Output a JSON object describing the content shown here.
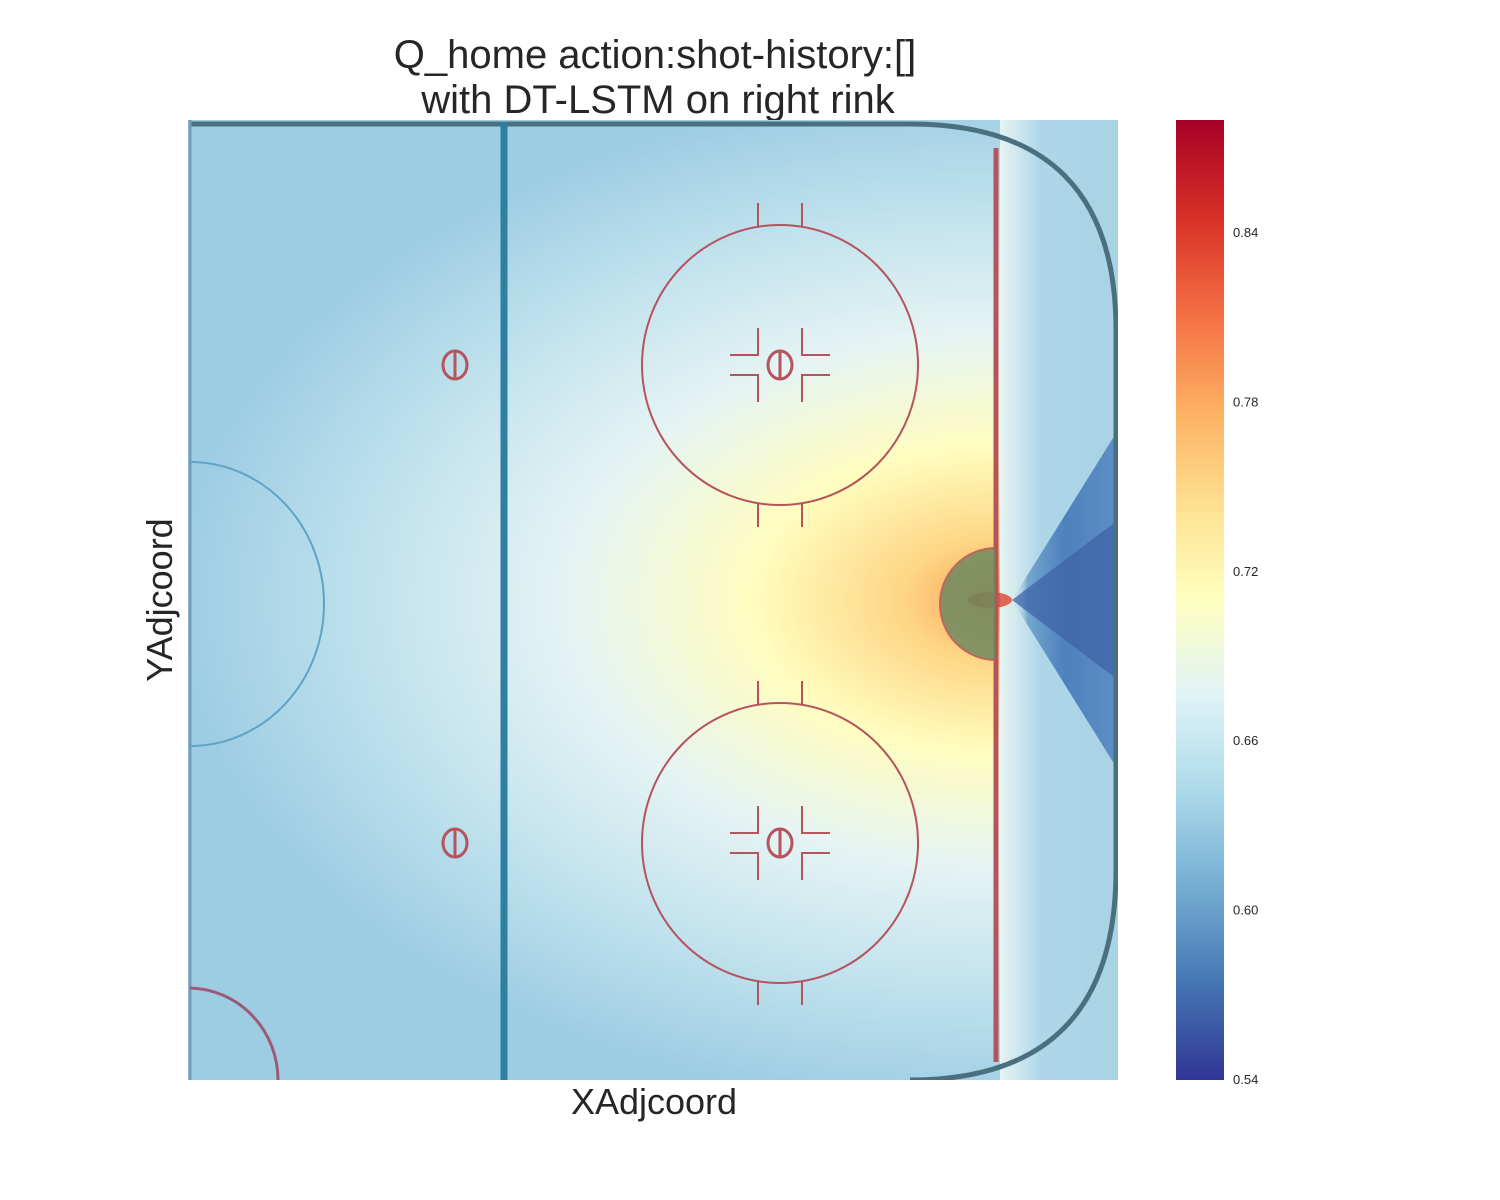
{
  "chart_data": {
    "type": "heatmap",
    "title_lines": [
      "Q_home action:shot-history:[]",
      "with DT-LSTM on right rink"
    ],
    "xlabel": "XAdjcoord",
    "ylabel": "YAdjcoord",
    "colormap": "RdYlBu_r",
    "colorbar": {
      "range": [
        0.54,
        0.88
      ],
      "ticks": [
        0.84,
        0.78,
        0.72,
        0.66,
        0.6,
        0.54
      ],
      "tick_labels": [
        "0.84",
        "0.78",
        "0.72",
        "0.66",
        "0.60",
        "0.54"
      ]
    },
    "x_range": [
      0,
      100
    ],
    "y_range": [
      -42.5,
      42.5
    ],
    "grid": false,
    "value_field": {
      "description_values": {
        "peak_near_crease": 0.84,
        "slot_area": 0.72,
        "neutral_zone": 0.66,
        "corners": 0.62,
        "behind_goal_line_center": 0.56
      }
    },
    "colors": {
      "rink_boards": "#4a7080",
      "blue_line": "#2e7fa0",
      "red_markings": "#b5545c",
      "crease_fill": "#6e8a5e"
    }
  }
}
